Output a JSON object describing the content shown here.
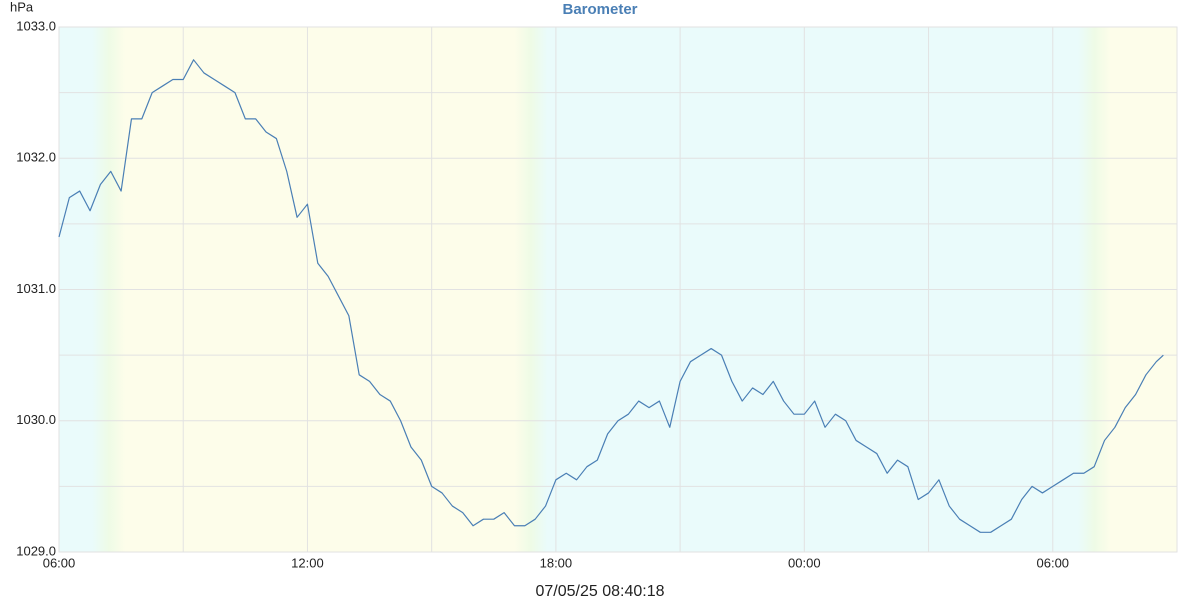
{
  "chart_data": {
    "type": "line",
    "title": "Barometer",
    "y_label": "hPa",
    "footer": "07/05/25 08:40:18",
    "color": "#4a7fb5",
    "x": [
      0,
      0.25,
      0.5,
      0.75,
      1,
      1.25,
      1.5,
      1.75,
      2,
      2.25,
      2.5,
      2.75,
      3,
      3.25,
      3.5,
      3.75,
      4,
      4.25,
      4.5,
      4.75,
      5,
      5.25,
      5.5,
      5.75,
      6,
      6.25,
      6.5,
      6.75,
      7,
      7.25,
      7.5,
      7.75,
      8,
      8.25,
      8.5,
      8.75,
      9,
      9.25,
      9.5,
      9.75,
      10,
      10.25,
      10.5,
      10.75,
      11,
      11.25,
      11.5,
      11.75,
      12,
      12.25,
      12.5,
      12.75,
      13,
      13.25,
      13.5,
      13.75,
      14,
      14.25,
      14.5,
      14.75,
      15,
      15.25,
      15.5,
      15.75,
      16,
      16.25,
      16.5,
      16.75,
      17,
      17.25,
      17.5,
      17.75,
      18,
      18.25,
      18.5,
      18.75,
      19,
      19.25,
      19.5,
      19.75,
      20,
      20.25,
      20.5,
      20.75,
      21,
      21.25,
      21.5,
      21.75,
      22,
      22.25,
      22.5,
      22.75,
      23,
      23.25,
      23.5,
      23.75,
      24,
      24.25,
      24.5,
      24.75,
      25,
      25.25,
      25.5,
      25.75,
      26,
      26.25,
      26.5,
      26.67
    ],
    "values": [
      1031.4,
      1031.7,
      1031.75,
      1031.6,
      1031.8,
      1031.9,
      1031.75,
      1032.3,
      1032.3,
      1032.5,
      1032.55,
      1032.6,
      1032.6,
      1032.75,
      1032.65,
      1032.6,
      1032.55,
      1032.5,
      1032.3,
      1032.3,
      1032.2,
      1032.15,
      1031.9,
      1031.55,
      1031.65,
      1031.2,
      1031.1,
      1030.95,
      1030.8,
      1030.35,
      1030.3,
      1030.2,
      1030.15,
      1030.0,
      1029.8,
      1029.7,
      1029.5,
      1029.45,
      1029.35,
      1029.3,
      1029.2,
      1029.25,
      1029.25,
      1029.3,
      1029.2,
      1029.2,
      1029.25,
      1029.35,
      1029.55,
      1029.6,
      1029.55,
      1029.65,
      1029.7,
      1029.9,
      1030.0,
      1030.05,
      1030.15,
      1030.1,
      1030.15,
      1029.95,
      1030.3,
      1030.45,
      1030.5,
      1030.55,
      1030.5,
      1030.3,
      1030.15,
      1030.25,
      1030.2,
      1030.3,
      1030.15,
      1030.05,
      1030.05,
      1030.15,
      1029.95,
      1030.05,
      1030.0,
      1029.85,
      1029.8,
      1029.75,
      1029.6,
      1029.7,
      1029.65,
      1029.4,
      1029.45,
      1029.55,
      1029.35,
      1029.25,
      1029.2,
      1029.15,
      1029.15,
      1029.2,
      1029.25,
      1029.4,
      1029.5,
      1029.45,
      1029.5,
      1029.55,
      1029.6,
      1029.6,
      1029.65,
      1029.85,
      1029.95,
      1030.1,
      1030.2,
      1030.35,
      1030.45,
      1030.5
    ],
    "xlim": [
      0,
      27
    ],
    "xticks": [
      {
        "value": 0,
        "label": "06:00"
      },
      {
        "value": 6,
        "label": "12:00"
      },
      {
        "value": 12,
        "label": "18:00"
      },
      {
        "value": 18,
        "label": "00:00"
      },
      {
        "value": 24,
        "label": "06:00"
      }
    ],
    "xgrid_minor": [
      3,
      9,
      15,
      21
    ],
    "ylim": [
      1029,
      1033
    ],
    "yticks": [
      {
        "value": 1029,
        "label": "1029.0"
      },
      {
        "value": 1030,
        "label": "1030.0"
      },
      {
        "value": 1031,
        "label": "1031.0"
      },
      {
        "value": 1032,
        "label": "1032.0"
      },
      {
        "value": 1033,
        "label": "1033.0"
      }
    ],
    "ygrid_minor": [
      1029.5,
      1030.5,
      1031.5,
      1032.5
    ],
    "grid": true,
    "daylight": [
      [
        1.6,
        11.0
      ],
      [
        25.4,
        27
      ]
    ],
    "day_color": "#fdfdea",
    "night_color": "#eafbfb"
  }
}
